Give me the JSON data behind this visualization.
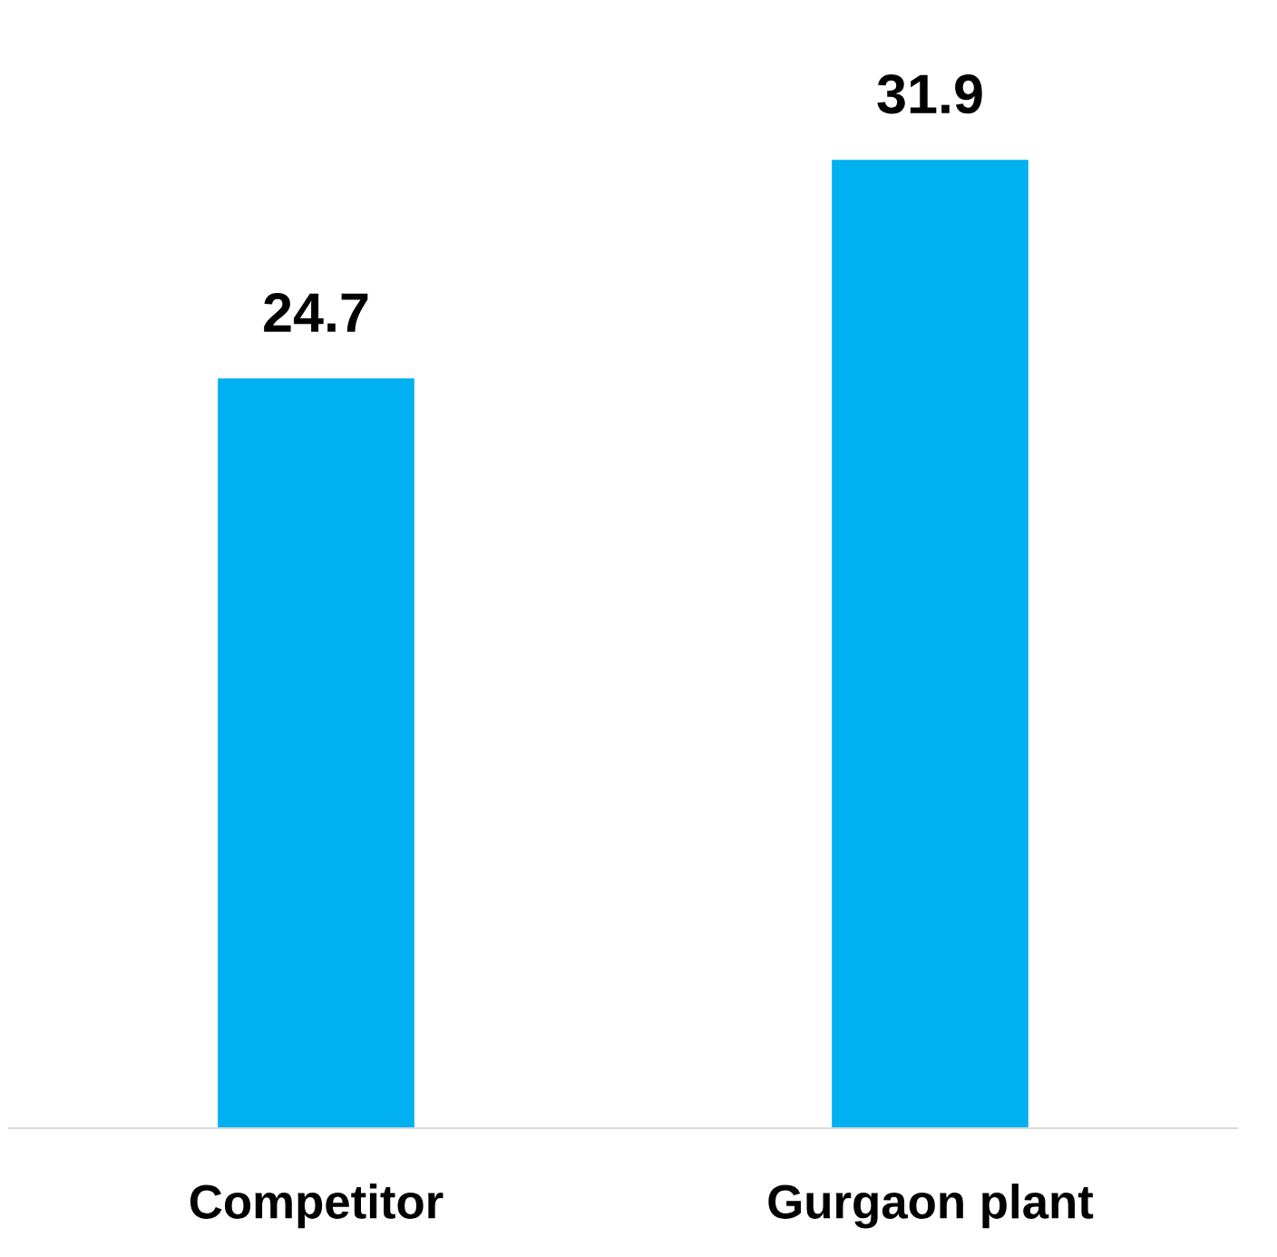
{
  "chart_data": {
    "type": "bar",
    "categories": [
      "Competitor",
      "Gurgaon plant"
    ],
    "series": [
      {
        "color": "#00b0f0",
        "values": [
          24.7,
          31.9
        ]
      }
    ],
    "data_labels": true,
    "grid": false,
    "legend": false
  }
}
